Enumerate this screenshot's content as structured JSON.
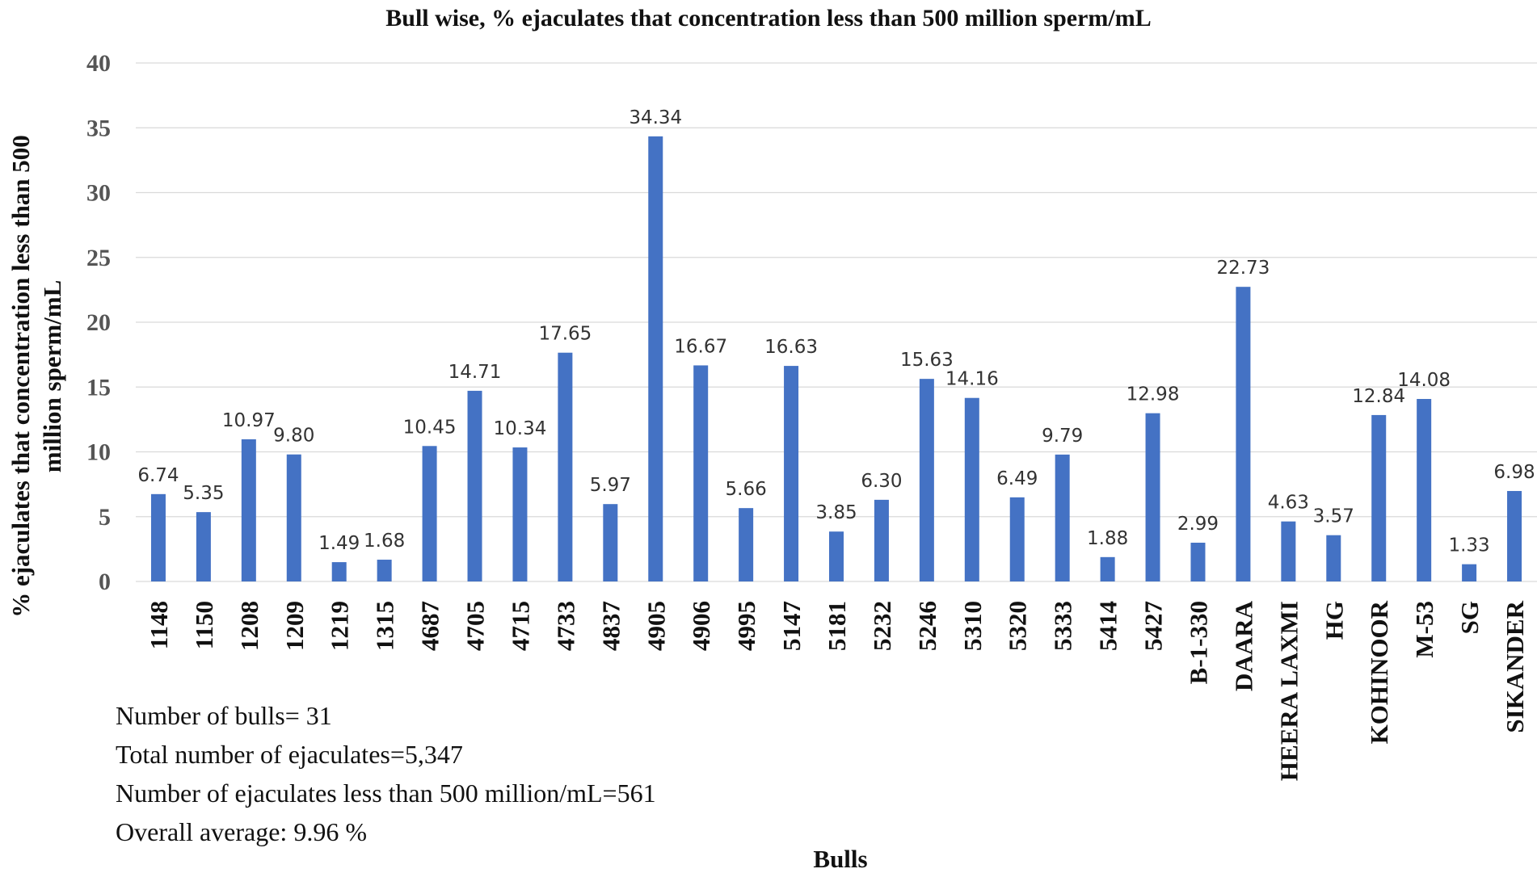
{
  "chart_data": {
    "type": "bar",
    "title": "Bull wise, % ejaculates that concentration less than 500 million sperm/mL",
    "xlabel": "Bulls",
    "ylabel": "% ejaculates that concentration less than 500 million sperm/mL",
    "ylim": [
      0,
      40
    ],
    "yticks": [
      "0",
      "5",
      "10",
      "15",
      "20",
      "25",
      "30",
      "35",
      "40"
    ],
    "grid": true,
    "color": "#4472c4",
    "categories": [
      "1148",
      "1150",
      "1208",
      "1209",
      "1219",
      "1315",
      "4687",
      "4705",
      "4715",
      "4733",
      "4837",
      "4905",
      "4906",
      "4995",
      "5147",
      "5181",
      "5232",
      "5246",
      "5310",
      "5320",
      "5333",
      "5414",
      "5427",
      "B-1-330",
      "DAARA",
      "HEERA LAXMI",
      "HG",
      "KOHINOOR",
      "M-53",
      "SG",
      "SIKANDER"
    ],
    "values": [
      6.74,
      5.35,
      10.97,
      9.8,
      1.49,
      1.68,
      10.45,
      14.71,
      10.34,
      17.65,
      5.97,
      34.34,
      16.67,
      5.66,
      16.63,
      3.85,
      6.3,
      15.63,
      14.16,
      6.49,
      9.79,
      1.88,
      12.98,
      2.99,
      22.73,
      4.63,
      3.57,
      12.84,
      14.08,
      1.33,
      6.98
    ],
    "data_labels": [
      "6.74",
      "5.35",
      "10.97",
      "9.80",
      "1.49",
      "1.68",
      "10.45",
      "14.71",
      "10.34",
      "17.65",
      "5.97",
      "34.34",
      "16.67",
      "5.66",
      "16.63",
      "3.85",
      "6.30",
      "15.63",
      "14.16",
      "6.49",
      "9.79",
      "1.88",
      "12.98",
      "2.99",
      "22.73",
      "4.63",
      "3.57",
      "12.84",
      "14.08",
      "1.33",
      "6.98"
    ]
  },
  "notes": {
    "bulls": "Number of bulls= 31",
    "total": "Total number of ejaculates=5,347",
    "less": "Number of ejaculates less than 500 million/mL=561",
    "average": "Overall average: 9.96 %"
  }
}
